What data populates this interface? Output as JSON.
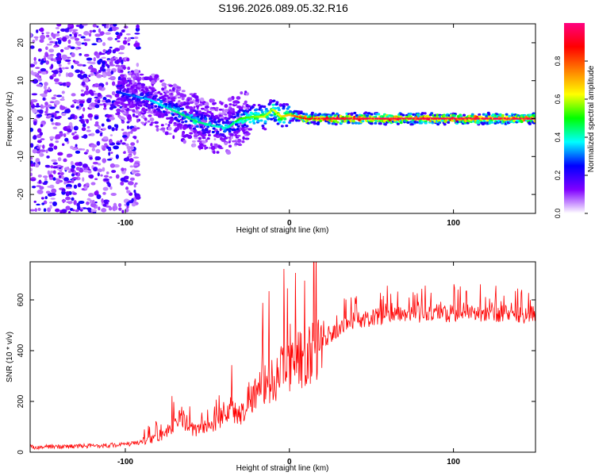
{
  "title": "S196.2026.089.05.32.R16",
  "chart_data": [
    {
      "type": "heatmap",
      "xlabel": "Height of straight line (km)",
      "ylabel": "Frequency (Hz)",
      "xlim": [
        -158,
        150
      ],
      "ylim": [
        -25,
        25
      ],
      "xticks": [
        -100,
        0,
        100
      ],
      "yticks": [
        -20,
        -10,
        0,
        10,
        20
      ],
      "colorbar": {
        "label": "Normalized spectral amplitude",
        "range": [
          0,
          1
        ],
        "ticks": [
          "0.0",
          "0.2",
          "0.4",
          "0.6",
          "0.8"
        ],
        "colors": [
          "#ffffff",
          "#8000ff",
          "#0000ff",
          "#00ffff",
          "#00ff00",
          "#ffff00",
          "#ff8000",
          "#ff0000",
          "#ff0080"
        ]
      },
      "ridge": {
        "x": [
          -105,
          -95,
          -85,
          -75,
          -65,
          -55,
          -45,
          -38,
          -30,
          -22,
          -15,
          -10,
          -5,
          0,
          10,
          30,
          60,
          100,
          150
        ],
        "freq": [
          7,
          6,
          5,
          3,
          1,
          -1,
          -2,
          -2.5,
          0,
          0.5,
          0.5,
          2.5,
          0.5,
          1,
          0,
          0,
          0,
          0,
          0
        ],
        "amplitude": [
          0.25,
          0.3,
          0.35,
          0.4,
          0.45,
          0.45,
          0.4,
          0.4,
          0.5,
          0.55,
          0.6,
          0.6,
          0.65,
          0.7,
          0.9,
          0.95,
          0.95,
          0.95,
          0.95
        ]
      },
      "noise_region_x": [
        -158,
        -100
      ]
    },
    {
      "type": "line",
      "xlabel": "Height of straight line (km)",
      "ylabel": "SNR (10 * v/v)",
      "xlim": [
        -158,
        150
      ],
      "ylim": [
        0,
        750
      ],
      "xticks": [
        -100,
        0,
        100
      ],
      "yticks": [
        0,
        200,
        400,
        600
      ],
      "color": "#ff0000",
      "x": [
        -158,
        -140,
        -120,
        -100,
        -90,
        -80,
        -75,
        -70,
        -65,
        -60,
        -55,
        -50,
        -45,
        -40,
        -35,
        -30,
        -25,
        -20,
        -15,
        -10,
        -5,
        0,
        10,
        20,
        30,
        40,
        50,
        60,
        70,
        80,
        90,
        100,
        110,
        120,
        130,
        140,
        150
      ],
      "y": [
        20,
        22,
        25,
        30,
        40,
        60,
        80,
        110,
        150,
        90,
        100,
        110,
        120,
        170,
        180,
        150,
        230,
        250,
        280,
        300,
        340,
        360,
        400,
        440,
        480,
        520,
        530,
        540,
        540,
        545,
        550,
        545,
        550,
        545,
        545,
        540,
        545
      ]
    }
  ]
}
